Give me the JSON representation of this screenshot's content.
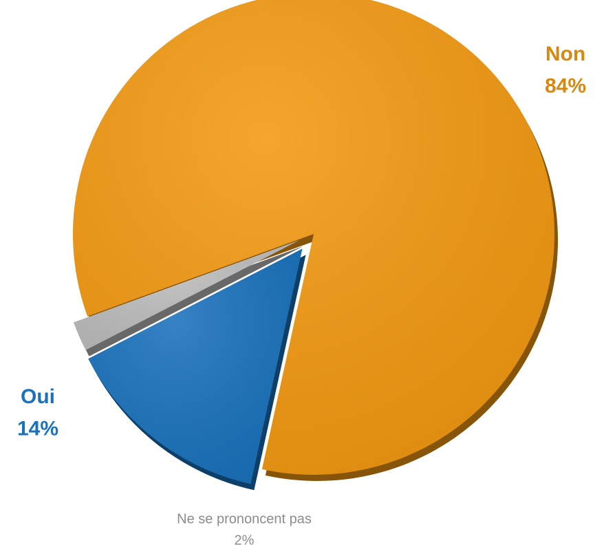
{
  "chart_data": {
    "type": "pie",
    "categories": [
      "Non",
      "Oui",
      "Ne se prononcent pas"
    ],
    "values": [
      84,
      14,
      2
    ],
    "value_labels": [
      "84%",
      "14%",
      "2%"
    ],
    "colors": [
      "#f39a12",
      "#1a72bd",
      "#bdbdbd"
    ]
  }
}
